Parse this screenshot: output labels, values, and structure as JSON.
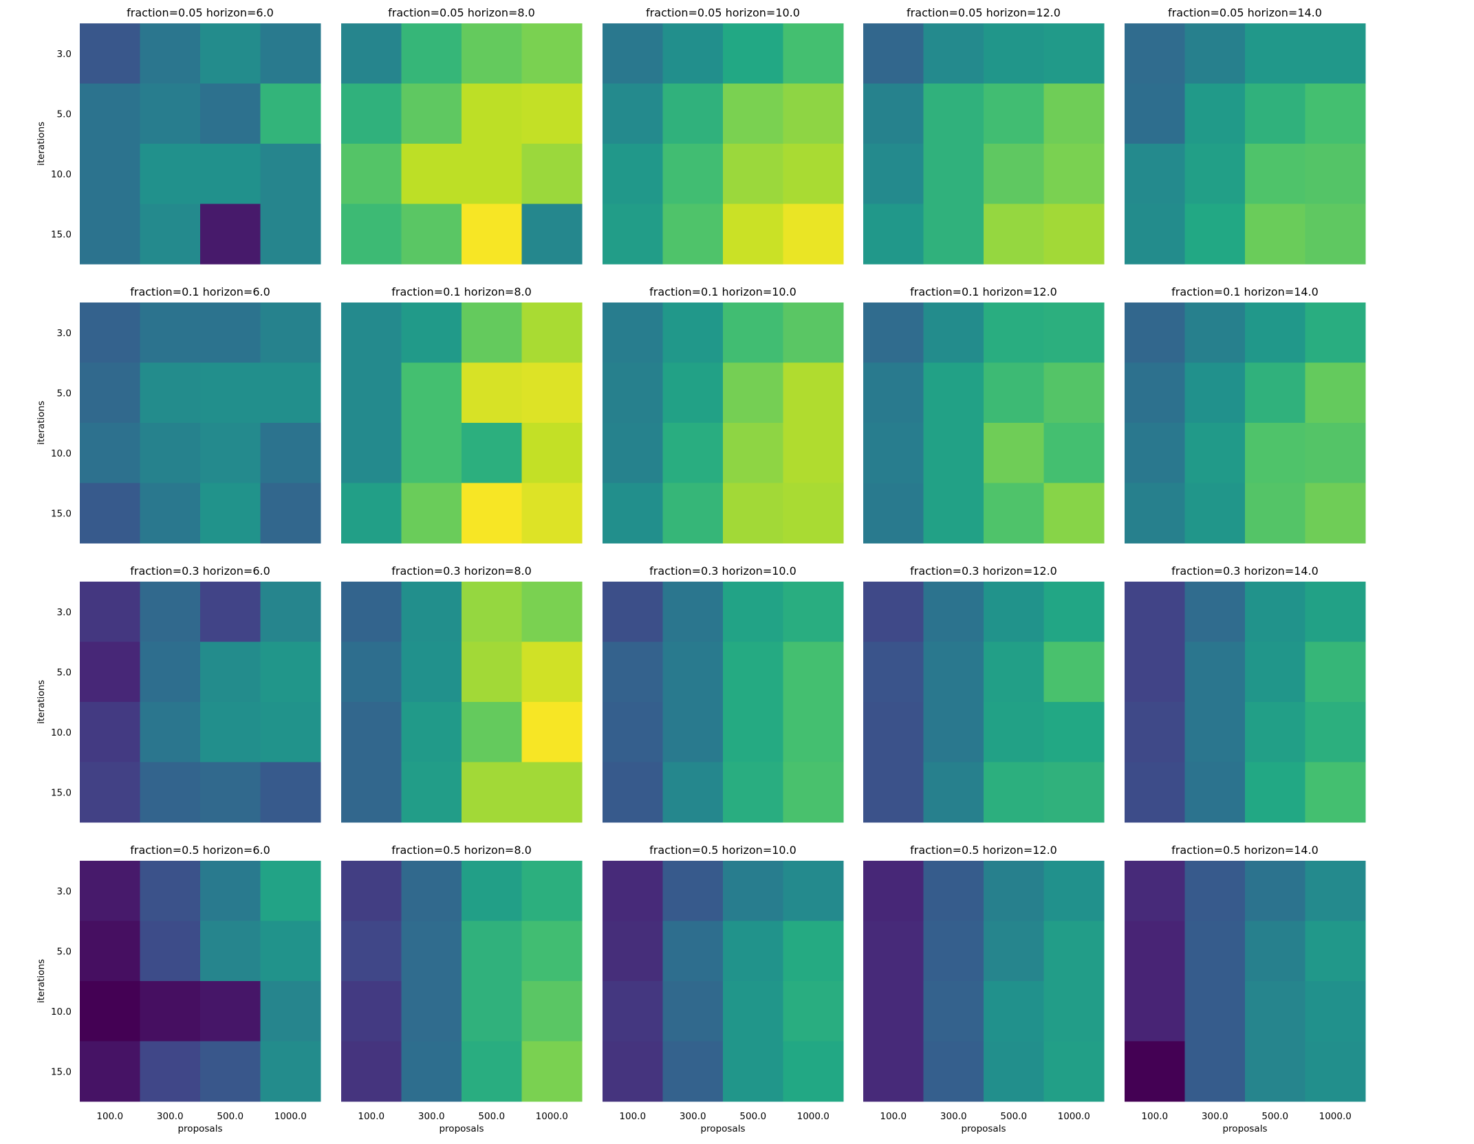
{
  "chart_data": {
    "type": "heatmap",
    "colormap": "viridis",
    "grid": false,
    "legend": "none",
    "xlabel": "proposals",
    "ylabel": "iterations",
    "x_categories": [
      "100.0",
      "300.0",
      "500.0",
      "1000.0"
    ],
    "y_categories": [
      "3.0",
      "5.0",
      "10.0",
      "15.0"
    ],
    "fractions": [
      "0.05",
      "0.1",
      "0.3",
      "0.5"
    ],
    "horizons": [
      "6.0",
      "8.0",
      "10.0",
      "12.0",
      "14.0"
    ],
    "color_range": [
      0,
      1
    ],
    "panels": [
      {
        "title": "fraction=0.05 horizon=6.0",
        "values": [
          [
            0.27,
            0.39,
            0.48,
            0.41
          ],
          [
            0.38,
            0.42,
            0.37,
            0.65
          ],
          [
            0.38,
            0.5,
            0.5,
            0.45
          ],
          [
            0.38,
            0.47,
            0.07,
            0.45
          ]
        ]
      },
      {
        "title": "fraction=0.05 horizon=8.0",
        "values": [
          [
            0.45,
            0.66,
            0.76,
            0.8
          ],
          [
            0.64,
            0.75,
            0.9,
            0.91
          ],
          [
            0.73,
            0.9,
            0.9,
            0.85
          ],
          [
            0.68,
            0.74,
            0.99,
            0.46
          ]
        ]
      },
      {
        "title": "fraction=0.05 horizon=10.0",
        "values": [
          [
            0.4,
            0.49,
            0.6,
            0.7
          ],
          [
            0.47,
            0.64,
            0.8,
            0.83
          ],
          [
            0.53,
            0.69,
            0.85,
            0.87
          ],
          [
            0.55,
            0.72,
            0.92,
            0.97
          ]
        ]
      },
      {
        "title": "fraction=0.05 horizon=12.0",
        "values": [
          [
            0.33,
            0.47,
            0.52,
            0.54
          ],
          [
            0.44,
            0.64,
            0.69,
            0.78
          ],
          [
            0.47,
            0.64,
            0.75,
            0.8
          ],
          [
            0.53,
            0.64,
            0.84,
            0.86
          ]
        ]
      },
      {
        "title": "fraction=0.05 horizon=14.0",
        "values": [
          [
            0.35,
            0.43,
            0.53,
            0.53
          ],
          [
            0.36,
            0.54,
            0.64,
            0.7
          ],
          [
            0.47,
            0.56,
            0.72,
            0.73
          ],
          [
            0.48,
            0.6,
            0.77,
            0.75
          ]
        ]
      },
      {
        "title": "fraction=0.1 horizon=6.0",
        "values": [
          [
            0.31,
            0.38,
            0.38,
            0.44
          ],
          [
            0.34,
            0.48,
            0.49,
            0.49
          ],
          [
            0.37,
            0.44,
            0.47,
            0.38
          ],
          [
            0.28,
            0.4,
            0.51,
            0.33
          ]
        ]
      },
      {
        "title": "fraction=0.1 horizon=8.0",
        "values": [
          [
            0.47,
            0.54,
            0.76,
            0.87
          ],
          [
            0.47,
            0.7,
            0.94,
            0.95
          ],
          [
            0.47,
            0.7,
            0.63,
            0.91
          ],
          [
            0.56,
            0.77,
            0.99,
            0.95
          ]
        ]
      },
      {
        "title": "fraction=0.1 horizon=10.0",
        "values": [
          [
            0.42,
            0.53,
            0.69,
            0.74
          ],
          [
            0.43,
            0.57,
            0.79,
            0.88
          ],
          [
            0.44,
            0.62,
            0.83,
            0.88
          ],
          [
            0.49,
            0.66,
            0.86,
            0.87
          ]
        ]
      },
      {
        "title": "fraction=0.1 horizon=12.0",
        "values": [
          [
            0.35,
            0.48,
            0.62,
            0.63
          ],
          [
            0.41,
            0.57,
            0.68,
            0.73
          ],
          [
            0.42,
            0.57,
            0.78,
            0.7
          ],
          [
            0.41,
            0.57,
            0.72,
            0.82
          ]
        ]
      },
      {
        "title": "fraction=0.1 horizon=14.0",
        "values": [
          [
            0.33,
            0.43,
            0.53,
            0.62
          ],
          [
            0.37,
            0.5,
            0.64,
            0.76
          ],
          [
            0.4,
            0.54,
            0.72,
            0.73
          ],
          [
            0.43,
            0.52,
            0.73,
            0.78
          ]
        ]
      },
      {
        "title": "fraction=0.3 horizon=6.0",
        "values": [
          [
            0.16,
            0.34,
            0.2,
            0.45
          ],
          [
            0.11,
            0.36,
            0.48,
            0.52
          ],
          [
            0.17,
            0.39,
            0.49,
            0.51
          ],
          [
            0.19,
            0.32,
            0.34,
            0.28
          ]
        ]
      },
      {
        "title": "fraction=0.3 horizon=8.0",
        "values": [
          [
            0.32,
            0.49,
            0.84,
            0.8
          ],
          [
            0.36,
            0.5,
            0.86,
            0.93
          ],
          [
            0.33,
            0.54,
            0.76,
            0.99
          ],
          [
            0.33,
            0.55,
            0.86,
            0.86
          ]
        ]
      },
      {
        "title": "fraction=0.3 horizon=10.0",
        "values": [
          [
            0.24,
            0.39,
            0.58,
            0.62
          ],
          [
            0.31,
            0.41,
            0.61,
            0.7
          ],
          [
            0.3,
            0.41,
            0.61,
            0.7
          ],
          [
            0.28,
            0.46,
            0.62,
            0.71
          ]
        ]
      },
      {
        "title": "fraction=0.3 horizon=12.0",
        "values": [
          [
            0.22,
            0.38,
            0.51,
            0.59
          ],
          [
            0.26,
            0.4,
            0.56,
            0.71
          ],
          [
            0.25,
            0.4,
            0.57,
            0.6
          ],
          [
            0.25,
            0.43,
            0.63,
            0.64
          ]
        ]
      },
      {
        "title": "fraction=0.3 horizon=14.0",
        "values": [
          [
            0.2,
            0.35,
            0.51,
            0.57
          ],
          [
            0.2,
            0.39,
            0.52,
            0.66
          ],
          [
            0.22,
            0.39,
            0.56,
            0.63
          ],
          [
            0.23,
            0.38,
            0.6,
            0.7
          ]
        ]
      },
      {
        "title": "fraction=0.5 horizon=6.0",
        "values": [
          [
            0.07,
            0.25,
            0.41,
            0.58
          ],
          [
            0.04,
            0.23,
            0.45,
            0.51
          ],
          [
            0.0,
            0.04,
            0.06,
            0.45
          ],
          [
            0.05,
            0.21,
            0.27,
            0.48
          ]
        ]
      },
      {
        "title": "fraction=0.5 horizon=8.0",
        "values": [
          [
            0.18,
            0.34,
            0.56,
            0.63
          ],
          [
            0.21,
            0.35,
            0.64,
            0.69
          ],
          [
            0.17,
            0.35,
            0.64,
            0.74
          ],
          [
            0.15,
            0.36,
            0.62,
            0.8
          ]
        ]
      },
      {
        "title": "fraction=0.5 horizon=10.0",
        "values": [
          [
            0.12,
            0.28,
            0.42,
            0.47
          ],
          [
            0.13,
            0.36,
            0.51,
            0.61
          ],
          [
            0.16,
            0.34,
            0.52,
            0.62
          ],
          [
            0.15,
            0.31,
            0.52,
            0.6
          ]
        ]
      },
      {
        "title": "fraction=0.5 horizon=12.0",
        "values": [
          [
            0.11,
            0.29,
            0.43,
            0.5
          ],
          [
            0.12,
            0.3,
            0.45,
            0.55
          ],
          [
            0.12,
            0.31,
            0.5,
            0.55
          ],
          [
            0.12,
            0.3,
            0.49,
            0.56
          ]
        ]
      },
      {
        "title": "fraction=0.5 horizon=14.0",
        "values": [
          [
            0.12,
            0.28,
            0.38,
            0.47
          ],
          [
            0.1,
            0.29,
            0.43,
            0.53
          ],
          [
            0.1,
            0.29,
            0.45,
            0.5
          ],
          [
            0.0,
            0.29,
            0.45,
            0.49
          ]
        ]
      }
    ]
  }
}
